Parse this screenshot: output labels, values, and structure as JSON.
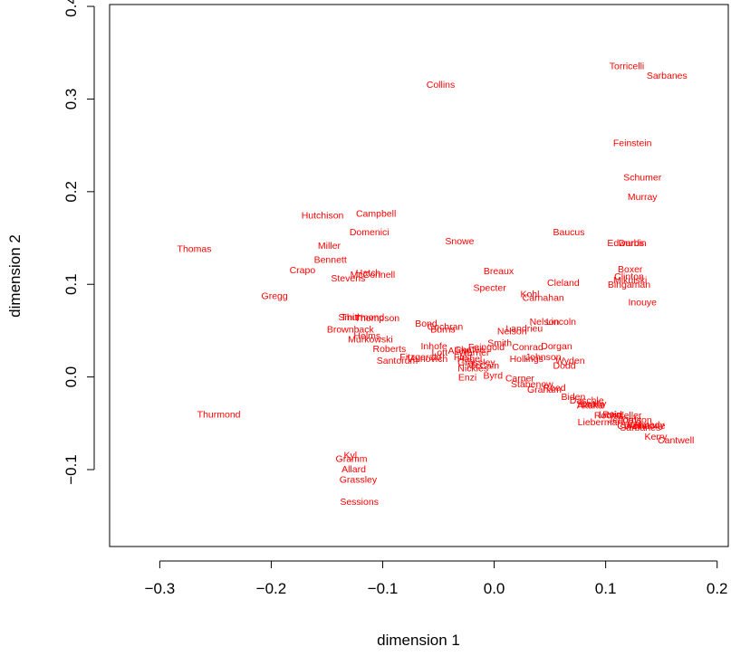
{
  "chart_data": {
    "type": "scatter",
    "title": "",
    "xlabel": "dimension 1",
    "ylabel": "dimension 2",
    "xlim": [
      -0.345,
      0.21
    ],
    "ylim": [
      -0.183,
      0.402
    ],
    "xticks": [
      -0.3,
      -0.2,
      -0.1,
      0.0,
      0.1,
      0.2
    ],
    "yticks": [
      -0.1,
      0.0,
      0.1,
      0.2,
      0.3,
      0.4
    ],
    "xtick_labels": [
      "−0.3",
      "−0.2",
      "−0.1",
      "0.0",
      "0.1",
      "0.2"
    ],
    "ytick_labels": [
      "−0.1",
      "0.0",
      "0.1",
      "0.2",
      "0.3",
      "0.4"
    ],
    "grid": false,
    "legend": "none",
    "color": "#ff0000",
    "points": [
      {
        "label": "Torricelli",
        "x": 0.119,
        "y": 0.336
      },
      {
        "label": "Sarbanes",
        "x": 0.155,
        "y": 0.326
      },
      {
        "label": "Collins",
        "x": -0.048,
        "y": 0.316
      },
      {
        "label": "Feinstein",
        "x": 0.124,
        "y": 0.253
      },
      {
        "label": "Schumer",
        "x": 0.133,
        "y": 0.216
      },
      {
        "label": "Murray",
        "x": 0.133,
        "y": 0.195
      },
      {
        "label": "Campbell",
        "x": -0.106,
        "y": 0.177
      },
      {
        "label": "Hutchison",
        "x": -0.154,
        "y": 0.175
      },
      {
        "label": "Domenici",
        "x": -0.112,
        "y": 0.157
      },
      {
        "label": "Baucus",
        "x": 0.067,
        "y": 0.157
      },
      {
        "label": "Snowe",
        "x": -0.031,
        "y": 0.147
      },
      {
        "label": "Miller",
        "x": -0.148,
        "y": 0.142
      },
      {
        "label": "Edwards",
        "x": 0.118,
        "y": 0.145
      },
      {
        "label": "Durbin",
        "x": 0.124,
        "y": 0.145
      },
      {
        "label": "Thomas",
        "x": -0.269,
        "y": 0.139
      },
      {
        "label": "Bennett",
        "x": -0.147,
        "y": 0.127
      },
      {
        "label": "Crapo",
        "x": -0.172,
        "y": 0.116
      },
      {
        "label": "Breaux",
        "x": 0.004,
        "y": 0.115
      },
      {
        "label": "Boxer",
        "x": 0.122,
        "y": 0.117
      },
      {
        "label": "Hatch",
        "x": -0.113,
        "y": 0.113
      },
      {
        "label": "McConnell",
        "x": -0.109,
        "y": 0.111
      },
      {
        "label": "Stevens",
        "x": -0.131,
        "y": 0.107
      },
      {
        "label": "Clinton",
        "x": 0.121,
        "y": 0.109
      },
      {
        "label": "Mikulski",
        "x": 0.122,
        "y": 0.105
      },
      {
        "label": "Cleland",
        "x": 0.062,
        "y": 0.102
      },
      {
        "label": "Bingaman",
        "x": 0.121,
        "y": 0.1
      },
      {
        "label": "Specter",
        "x": -0.004,
        "y": 0.097
      },
      {
        "label": "Kohl",
        "x": 0.032,
        "y": 0.09
      },
      {
        "label": "Carnahan",
        "x": 0.044,
        "y": 0.086
      },
      {
        "label": "Gregg",
        "x": -0.197,
        "y": 0.088
      },
      {
        "label": "Inouye",
        "x": 0.133,
        "y": 0.081
      },
      {
        "label": "Smith",
        "x": -0.129,
        "y": 0.065
      },
      {
        "label": "Thompson",
        "x": -0.105,
        "y": 0.064
      },
      {
        "label": "Thurmond2",
        "x": -0.118,
        "y": 0.065
      },
      {
        "label": "Nelson",
        "x": 0.045,
        "y": 0.06
      },
      {
        "label": "Lincoln",
        "x": 0.06,
        "y": 0.06
      },
      {
        "label": "Landrieu",
        "x": 0.027,
        "y": 0.053
      },
      {
        "label": "Bond",
        "x": -0.061,
        "y": 0.058
      },
      {
        "label": "Cochran",
        "x": -0.044,
        "y": 0.055
      },
      {
        "label": "Burns",
        "x": -0.046,
        "y": 0.052
      },
      {
        "label": "Nelson2",
        "x": 0.016,
        "y": 0.05
      },
      {
        "label": "Brownback",
        "x": -0.129,
        "y": 0.052
      },
      {
        "label": "Helms",
        "x": -0.114,
        "y": 0.045
      },
      {
        "label": "Murkowski",
        "x": -0.111,
        "y": 0.041
      },
      {
        "label": "Smith2",
        "x": 0.005,
        "y": 0.037
      },
      {
        "label": "Dorgan",
        "x": 0.056,
        "y": 0.034
      },
      {
        "label": "Inhofe",
        "x": -0.054,
        "y": 0.034
      },
      {
        "label": "Roberts",
        "x": -0.094,
        "y": 0.031
      },
      {
        "label": "Conrad",
        "x": 0.03,
        "y": 0.033
      },
      {
        "label": "Feingold",
        "x": -0.007,
        "y": 0.033
      },
      {
        "label": "Lott",
        "x": -0.049,
        "y": 0.027
      },
      {
        "label": "Allen",
        "x": -0.032,
        "y": 0.029
      },
      {
        "label": "Chafee",
        "x": -0.022,
        "y": 0.03
      },
      {
        "label": "Warner",
        "x": -0.018,
        "y": 0.027
      },
      {
        "label": "Johnson",
        "x": 0.044,
        "y": 0.022
      },
      {
        "label": "Hollings",
        "x": 0.029,
        "y": 0.02
      },
      {
        "label": "Fitzgerald",
        "x": -0.066,
        "y": 0.022
      },
      {
        "label": "Frist",
        "x": -0.028,
        "y": 0.022
      },
      {
        "label": "Hagel",
        "x": -0.022,
        "y": 0.02
      },
      {
        "label": "Santorum",
        "x": -0.087,
        "y": 0.018
      },
      {
        "label": "Voinovich",
        "x": -0.06,
        "y": 0.02
      },
      {
        "label": "Wyden",
        "x": 0.068,
        "y": 0.018
      },
      {
        "label": "Dodd",
        "x": 0.063,
        "y": 0.013
      },
      {
        "label": "Grassley2",
        "x": -0.016,
        "y": 0.016
      },
      {
        "label": "McCain",
        "x": -0.01,
        "y": 0.013
      },
      {
        "label": "Nickles",
        "x": -0.019,
        "y": 0.01
      },
      {
        "label": "Byrd",
        "x": -0.001,
        "y": 0.002
      },
      {
        "label": "Enzi",
        "x": -0.024,
        "y": 0.0
      },
      {
        "label": "Carper",
        "x": 0.023,
        "y": -0.001
      },
      {
        "label": "Stabenow",
        "x": 0.034,
        "y": -0.007
      },
      {
        "label": "Reed",
        "x": 0.054,
        "y": -0.011
      },
      {
        "label": "Graham",
        "x": 0.045,
        "y": -0.013
      },
      {
        "label": "Biden",
        "x": 0.071,
        "y": -0.021
      },
      {
        "label": "Daschle",
        "x": 0.083,
        "y": -0.025
      },
      {
        "label": "Leahy",
        "x": 0.089,
        "y": -0.028
      },
      {
        "label": "Harkin",
        "x": 0.087,
        "y": -0.029
      },
      {
        "label": "Akaka",
        "x": 0.086,
        "y": -0.03
      },
      {
        "label": "Reid",
        "x": 0.106,
        "y": -0.04
      },
      {
        "label": "Levin",
        "x": 0.104,
        "y": -0.04
      },
      {
        "label": "Rockefeller",
        "x": 0.111,
        "y": -0.041
      },
      {
        "label": "Lieberman",
        "x": 0.095,
        "y": -0.048
      },
      {
        "label": "Jeffords",
        "x": 0.117,
        "y": -0.046
      },
      {
        "label": "Dayton",
        "x": 0.128,
        "y": -0.046
      },
      {
        "label": "Kennedy",
        "x": 0.136,
        "y": -0.051
      },
      {
        "label": "Corzine",
        "x": 0.125,
        "y": -0.052
      },
      {
        "label": "Wellstone",
        "x": 0.135,
        "y": -0.052
      },
      {
        "label": "Sarbanes2",
        "x": 0.131,
        "y": -0.054
      },
      {
        "label": "Kerry",
        "x": 0.145,
        "y": -0.064
      },
      {
        "label": "Cantwell",
        "x": 0.163,
        "y": -0.068
      },
      {
        "label": "Thurmond",
        "x": -0.247,
        "y": -0.04
      },
      {
        "label": "Kyl",
        "x": -0.129,
        "y": -0.084
      },
      {
        "label": "Gramm",
        "x": -0.128,
        "y": -0.088
      },
      {
        "label": "Allard",
        "x": -0.126,
        "y": -0.099
      },
      {
        "label": "Grassley",
        "x": -0.122,
        "y": -0.11
      },
      {
        "label": "Sessions",
        "x": -0.121,
        "y": -0.134
      }
    ]
  }
}
